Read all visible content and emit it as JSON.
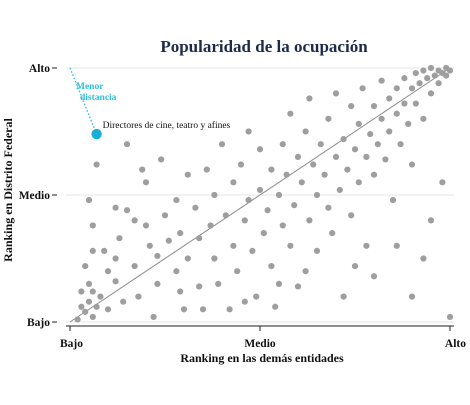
{
  "chart_data": {
    "type": "scatter",
    "title": "Popularidad de la ocupación",
    "xlabel": "Ranking en las demás entidades",
    "ylabel": "Ranking en Distrito Federal",
    "xlim": [
      0,
      1
    ],
    "ylim": [
      0,
      1
    ],
    "x_ticks": [
      {
        "value": 0,
        "label": "Bajo"
      },
      {
        "value": 0.5,
        "label": "Medio"
      },
      {
        "value": 1,
        "label": "Alto"
      }
    ],
    "y_ticks": [
      {
        "value": 0,
        "label": "Bajo"
      },
      {
        "value": 0.5,
        "label": "Medio"
      },
      {
        "value": 1,
        "label": "Alto"
      }
    ],
    "grid": "horizontal",
    "colors": {
      "points": "#9e9e9e",
      "highlight": "#1aafd6",
      "diagonal": "#8c8c8c",
      "title": "#1c2b4a",
      "annotation": "#30c0d8"
    },
    "diagonal": {
      "from": [
        0,
        0
      ],
      "to": [
        1,
        1
      ]
    },
    "highlight": {
      "x": 0.07,
      "y": 0.74,
      "label": "Directores de cine, teatro y afines"
    },
    "annotation": {
      "text_line1": "Menor",
      "text_line2": "distancia",
      "from": [
        0,
        1
      ],
      "to": [
        0.07,
        0.74
      ]
    },
    "points": [
      [
        0.02,
        0.01
      ],
      [
        0.03,
        0.06
      ],
      [
        0.04,
        0.04
      ],
      [
        0.03,
        0.12
      ],
      [
        0.05,
        0.15
      ],
      [
        0.05,
        0.08
      ],
      [
        0.06,
        0.02
      ],
      [
        0.07,
        0.06
      ],
      [
        0.06,
        0.12
      ],
      [
        0.08,
        0.1
      ],
      [
        0.04,
        0.22
      ],
      [
        0.06,
        0.28
      ],
      [
        0.05,
        0.48
      ],
      [
        0.06,
        0.38
      ],
      [
        0.07,
        0.62
      ],
      [
        0.09,
        0.28
      ],
      [
        0.1,
        0.05
      ],
      [
        0.1,
        0.2
      ],
      [
        0.12,
        0.16
      ],
      [
        0.12,
        0.25
      ],
      [
        0.14,
        0.08
      ],
      [
        0.13,
        0.33
      ],
      [
        0.15,
        0.44
      ],
      [
        0.12,
        0.45
      ],
      [
        0.15,
        0.7
      ],
      [
        0.17,
        0.22
      ],
      [
        0.18,
        0.1
      ],
      [
        0.17,
        0.4
      ],
      [
        0.2,
        0.55
      ],
      [
        0.19,
        0.6
      ],
      [
        0.21,
        0.3
      ],
      [
        0.2,
        0.38
      ],
      [
        0.22,
        0.02
      ],
      [
        0.23,
        0.15
      ],
      [
        0.23,
        0.26
      ],
      [
        0.25,
        0.42
      ],
      [
        0.24,
        0.64
      ],
      [
        0.26,
        0.32
      ],
      [
        0.28,
        0.48
      ],
      [
        0.28,
        0.2
      ],
      [
        0.29,
        0.12
      ],
      [
        0.3,
        0.05
      ],
      [
        0.29,
        0.35
      ],
      [
        0.31,
        0.58
      ],
      [
        0.31,
        0.25
      ],
      [
        0.33,
        0.45
      ],
      [
        0.34,
        0.14
      ],
      [
        0.35,
        0.05
      ],
      [
        0.34,
        0.33
      ],
      [
        0.36,
        0.6
      ],
      [
        0.37,
        0.38
      ],
      [
        0.38,
        0.25
      ],
      [
        0.38,
        0.5
      ],
      [
        0.39,
        0.15
      ],
      [
        0.4,
        0.7
      ],
      [
        0.41,
        0.42
      ],
      [
        0.42,
        0.05
      ],
      [
        0.43,
        0.3
      ],
      [
        0.43,
        0.55
      ],
      [
        0.44,
        0.2
      ],
      [
        0.45,
        0.62
      ],
      [
        0.46,
        0.4
      ],
      [
        0.47,
        0.48
      ],
      [
        0.47,
        0.75
      ],
      [
        0.48,
        0.28
      ],
      [
        0.49,
        0.1
      ],
      [
        0.5,
        0.52
      ],
      [
        0.5,
        0.68
      ],
      [
        0.51,
        0.35
      ],
      [
        0.52,
        0.44
      ],
      [
        0.53,
        0.22
      ],
      [
        0.53,
        0.6
      ],
      [
        0.54,
        0.06
      ],
      [
        0.55,
        0.5
      ],
      [
        0.56,
        0.7
      ],
      [
        0.56,
        0.38
      ],
      [
        0.57,
        0.58
      ],
      [
        0.58,
        0.3
      ],
      [
        0.58,
        0.82
      ],
      [
        0.59,
        0.46
      ],
      [
        0.6,
        0.65
      ],
      [
        0.6,
        0.14
      ],
      [
        0.61,
        0.55
      ],
      [
        0.62,
        0.75
      ],
      [
        0.63,
        0.4
      ],
      [
        0.63,
        0.88
      ],
      [
        0.64,
        0.62
      ],
      [
        0.65,
        0.5
      ],
      [
        0.65,
        0.28
      ],
      [
        0.66,
        0.7
      ],
      [
        0.67,
        0.58
      ],
      [
        0.68,
        0.8
      ],
      [
        0.68,
        0.45
      ],
      [
        0.69,
        0.35
      ],
      [
        0.7,
        0.65
      ],
      [
        0.7,
        0.9
      ],
      [
        0.71,
        0.52
      ],
      [
        0.72,
        0.72
      ],
      [
        0.72,
        0.1
      ],
      [
        0.73,
        0.6
      ],
      [
        0.74,
        0.85
      ],
      [
        0.74,
        0.42
      ],
      [
        0.75,
        0.68
      ],
      [
        0.76,
        0.78
      ],
      [
        0.76,
        0.55
      ],
      [
        0.77,
        0.92
      ],
      [
        0.78,
        0.65
      ],
      [
        0.78,
        0.3
      ],
      [
        0.79,
        0.74
      ],
      [
        0.8,
        0.85
      ],
      [
        0.8,
        0.58
      ],
      [
        0.81,
        0.7
      ],
      [
        0.82,
        0.95
      ],
      [
        0.82,
        0.8
      ],
      [
        0.83,
        0.64
      ],
      [
        0.84,
        0.88
      ],
      [
        0.84,
        0.75
      ],
      [
        0.85,
        0.48
      ],
      [
        0.86,
        0.92
      ],
      [
        0.86,
        0.82
      ],
      [
        0.87,
        0.7
      ],
      [
        0.88,
        0.96
      ],
      [
        0.88,
        0.86
      ],
      [
        0.89,
        0.78
      ],
      [
        0.9,
        0.92
      ],
      [
        0.9,
        0.62
      ],
      [
        0.91,
        0.98
      ],
      [
        0.91,
        0.86
      ],
      [
        0.92,
        0.94
      ],
      [
        0.93,
        0.8
      ],
      [
        0.93,
        0.99
      ],
      [
        0.94,
        0.96
      ],
      [
        0.95,
        0.9
      ],
      [
        0.95,
        1.0
      ],
      [
        0.96,
        0.97
      ],
      [
        0.97,
        0.99
      ],
      [
        0.97,
        0.94
      ],
      [
        0.98,
        0.98
      ],
      [
        0.99,
        1.0
      ],
      [
        0.99,
        0.97
      ],
      [
        1.0,
        0.99
      ],
      [
        0.98,
        0.55
      ],
      [
        0.95,
        0.4
      ],
      [
        0.9,
        0.1
      ],
      [
        1.0,
        0.02
      ],
      [
        0.93,
        0.25
      ],
      [
        0.86,
        0.3
      ],
      [
        0.8,
        0.18
      ],
      [
        0.75,
        0.22
      ],
      [
        0.62,
        0.2
      ],
      [
        0.55,
        0.15
      ],
      [
        0.46,
        0.08
      ]
    ]
  }
}
